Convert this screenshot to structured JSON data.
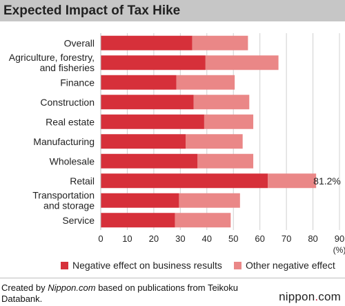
{
  "title": "Expected Impact of Tax Hike",
  "chart_data": {
    "type": "bar",
    "orientation": "horizontal",
    "stacked": true,
    "categories": [
      [
        "Overall"
      ],
      [
        "Agriculture, forestry,",
        "and fisheries"
      ],
      [
        "Finance"
      ],
      [
        "Construction"
      ],
      [
        "Real estate"
      ],
      [
        "Manufacturing"
      ],
      [
        "Wholesale"
      ],
      [
        "Retail"
      ],
      [
        "Transportation",
        "and storage"
      ],
      [
        "Service"
      ]
    ],
    "series": [
      {
        "name": "Negative effect on business results",
        "color": "#d6303a",
        "values": [
          34.5,
          39.5,
          28.5,
          35,
          39,
          32,
          36.5,
          63,
          29.5,
          28
        ]
      },
      {
        "name": "Other negative effect",
        "color": "#ea8787",
        "values": [
          21,
          27.5,
          22,
          21,
          18.5,
          21.5,
          21,
          18.2,
          23,
          21
        ]
      }
    ],
    "annotations": [
      {
        "category_index": 7,
        "text": "81.2%"
      }
    ],
    "xlim": [
      0,
      90
    ],
    "xticks": [
      "0",
      "10",
      "20",
      "30",
      "40",
      "50",
      "60",
      "70",
      "80",
      "90"
    ],
    "xlabel": "(%)",
    "grid": true,
    "legend_position": "bottom"
  },
  "legend": {
    "items": [
      "Negative effect on business results",
      "Other negative effect"
    ]
  },
  "footer": {
    "credit_prefix": "Created by ",
    "credit_site": "Nippon.com",
    "credit_suffix": " based on publications from Teikoku Databank.",
    "brand_main": "nippon",
    "brand_dot": ".",
    "brand_tld": "com"
  }
}
